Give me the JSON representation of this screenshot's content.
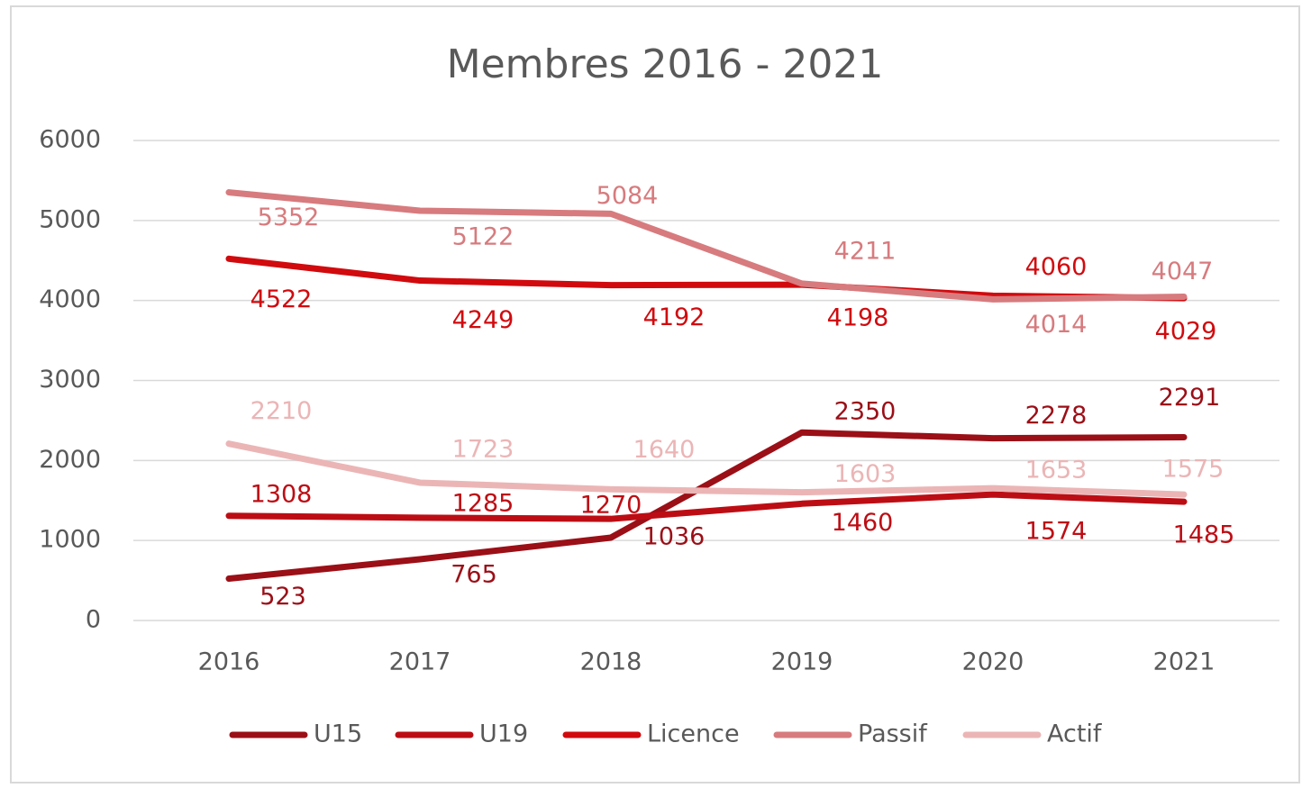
{
  "chart_data": {
    "type": "line",
    "title": "Membres 2016 - 2021",
    "categories": [
      "2016",
      "2017",
      "2018",
      "2019",
      "2020",
      "2021"
    ],
    "series": [
      {
        "name": "U15",
        "color": "#9b0f17",
        "values": [
          523,
          765,
          1036,
          2350,
          2278,
          2291
        ]
      },
      {
        "name": "U19",
        "color": "#bd0d14",
        "values": [
          1308,
          1285,
          1270,
          1460,
          1574,
          1485
        ]
      },
      {
        "name": "Licence",
        "color": "#d10a0e",
        "values": [
          4522,
          4249,
          4192,
          4198,
          4060,
          4029
        ]
      },
      {
        "name": "Passif",
        "color": "#d77b7e",
        "values": [
          5352,
          5122,
          5084,
          4211,
          4014,
          4047
        ]
      },
      {
        "name": "Actif",
        "color": "#ebb5b6",
        "values": [
          2210,
          1723,
          1640,
          1603,
          1653,
          1575
        ]
      }
    ],
    "ylim": [
      0,
      6000
    ],
    "yticks": [
      0,
      1000,
      2000,
      3000,
      4000,
      5000,
      6000
    ],
    "grid": true,
    "legend": "bottom"
  }
}
